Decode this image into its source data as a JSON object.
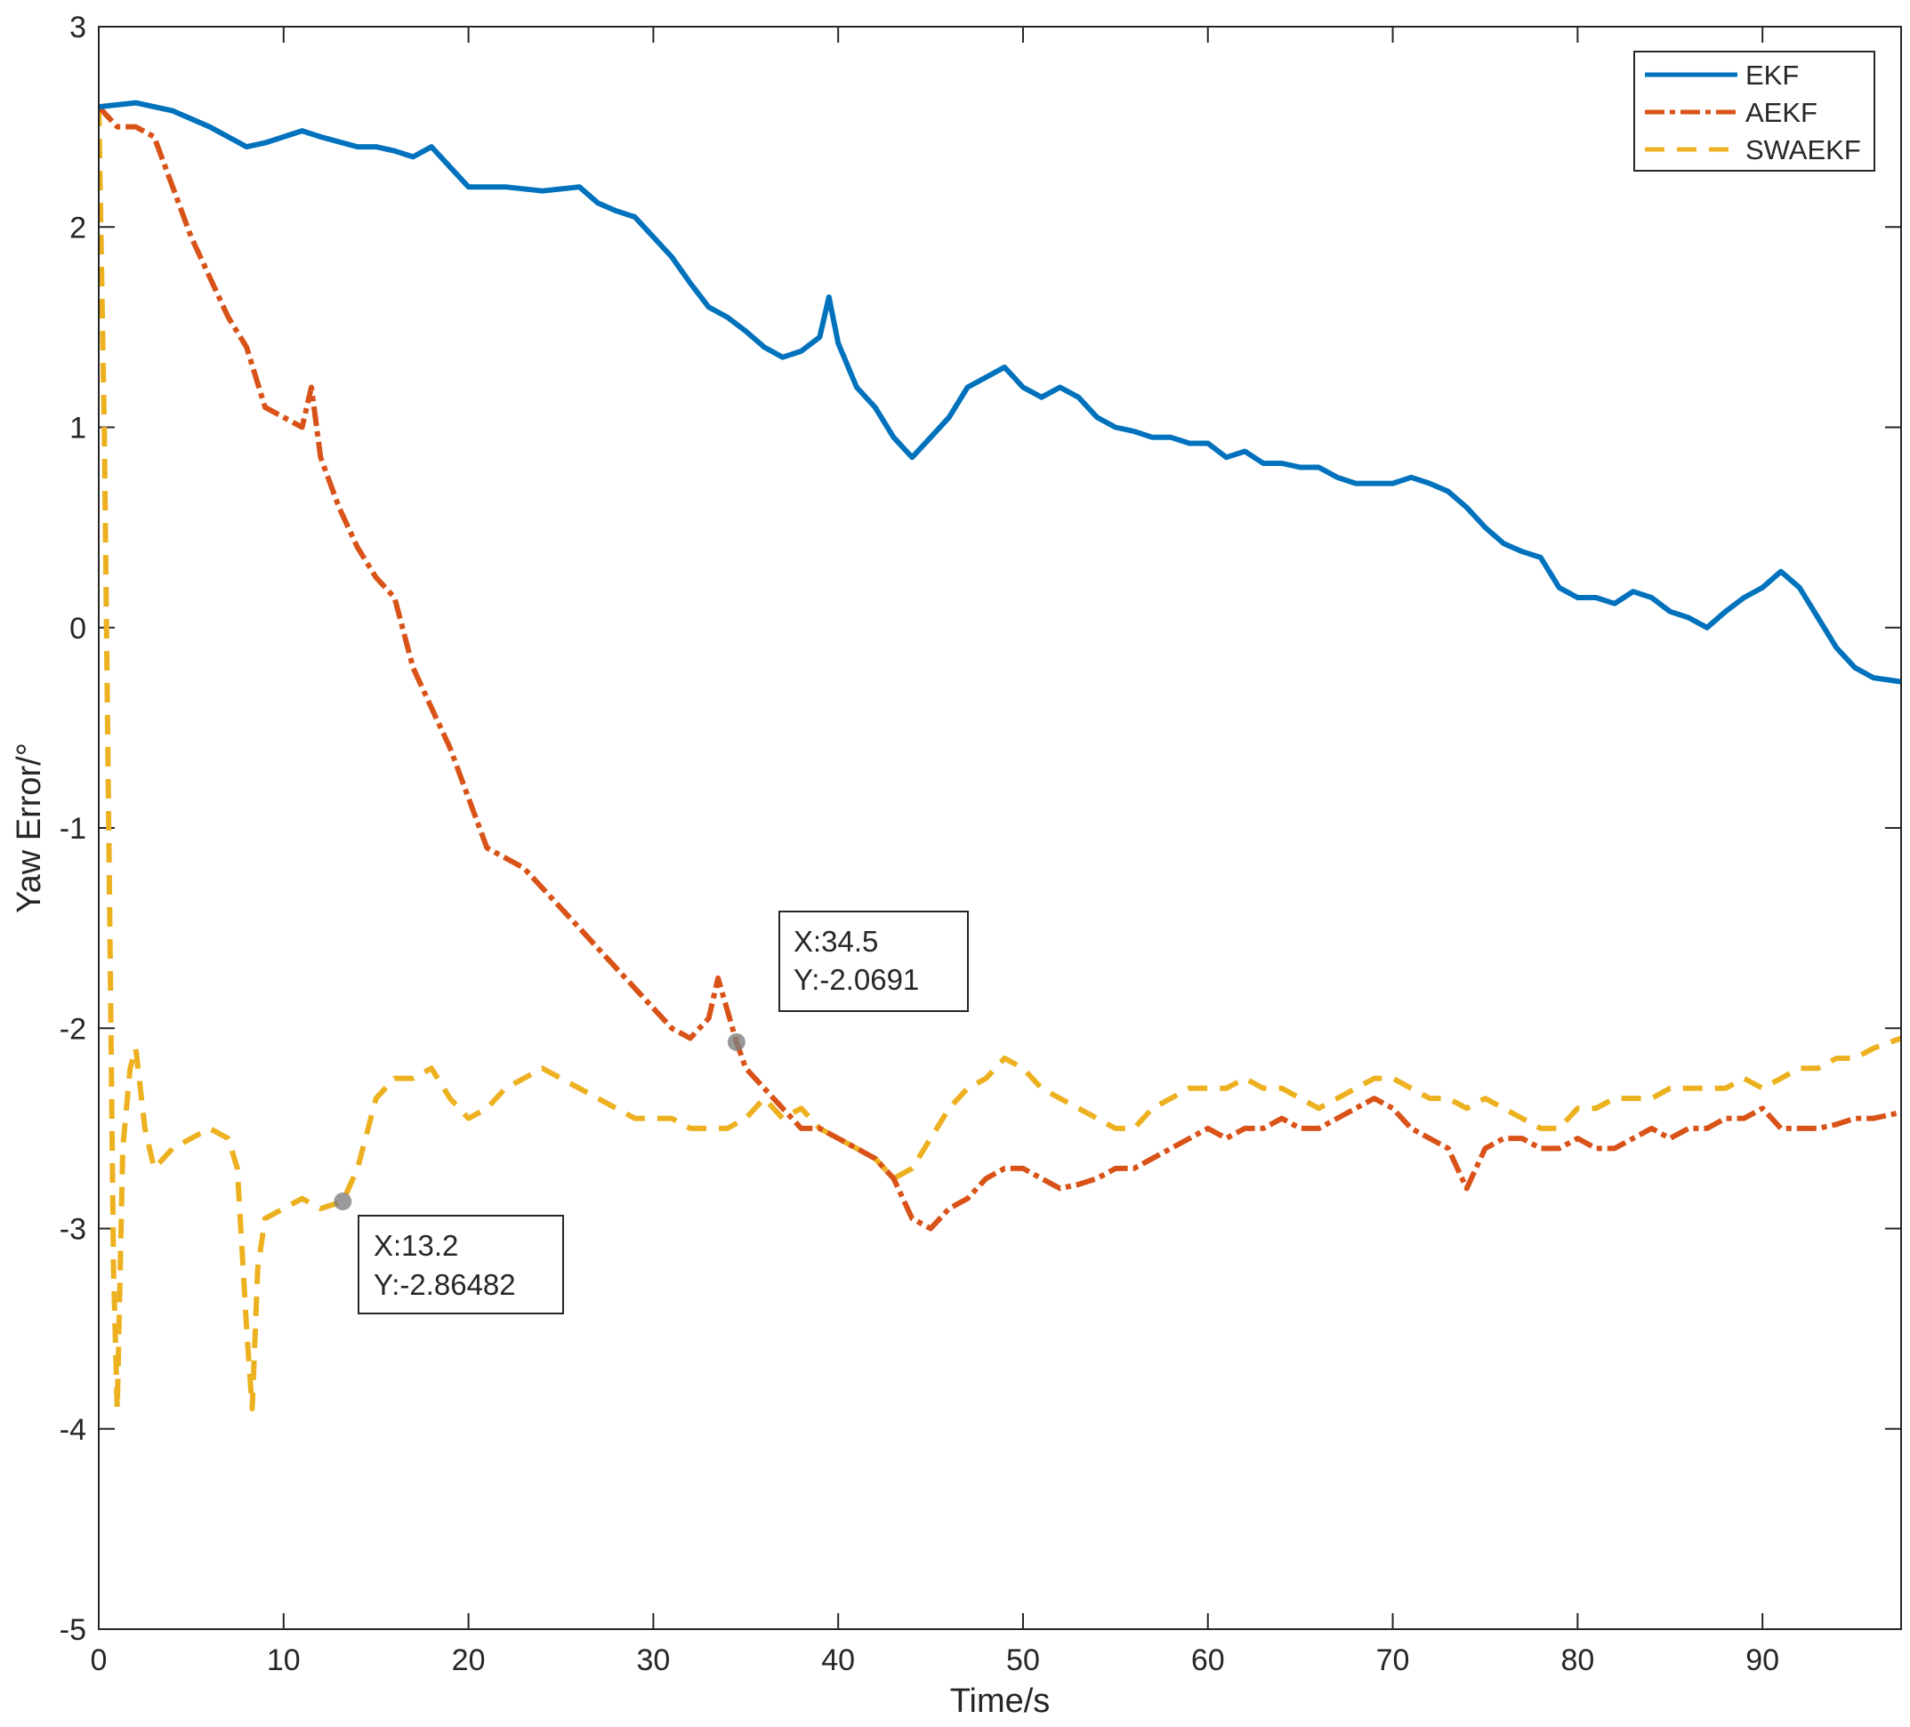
{
  "chart_data": {
    "type": "line",
    "xlabel": "Time/s",
    "ylabel": "Yaw Error/°",
    "xlim": [
      0,
      97.5
    ],
    "ylim": [
      -5,
      3
    ],
    "xticks": [
      0,
      10,
      20,
      30,
      40,
      50,
      60,
      70,
      80,
      90
    ],
    "yticks": [
      3,
      2,
      1,
      0,
      -1,
      -2,
      -3,
      -4,
      -5
    ],
    "legend": {
      "position": "top-right",
      "entries": [
        "EKF",
        "AEKF",
        "SWAEKF"
      ]
    },
    "series": [
      {
        "name": "EKF",
        "color": "#0072BD",
        "style": "solid",
        "points": [
          [
            0,
            2.6
          ],
          [
            2,
            2.62
          ],
          [
            3,
            2.6
          ],
          [
            4,
            2.58
          ],
          [
            6,
            2.5
          ],
          [
            7,
            2.45
          ],
          [
            8,
            2.4
          ],
          [
            9,
            2.42
          ],
          [
            10,
            2.45
          ],
          [
            11,
            2.48
          ],
          [
            12,
            2.45
          ],
          [
            14,
            2.4
          ],
          [
            15,
            2.4
          ],
          [
            16,
            2.38
          ],
          [
            17,
            2.35
          ],
          [
            18,
            2.4
          ],
          [
            19,
            2.3
          ],
          [
            20,
            2.2
          ],
          [
            22,
            2.2
          ],
          [
            24,
            2.18
          ],
          [
            26,
            2.2
          ],
          [
            27,
            2.12
          ],
          [
            28,
            2.08
          ],
          [
            29,
            2.05
          ],
          [
            30,
            1.95
          ],
          [
            31,
            1.85
          ],
          [
            32,
            1.72
          ],
          [
            33,
            1.6
          ],
          [
            34,
            1.55
          ],
          [
            35,
            1.48
          ],
          [
            36,
            1.4
          ],
          [
            37,
            1.35
          ],
          [
            38,
            1.38
          ],
          [
            39,
            1.45
          ],
          [
            39.5,
            1.65
          ],
          [
            40,
            1.42
          ],
          [
            41,
            1.2
          ],
          [
            42,
            1.1
          ],
          [
            43,
            0.95
          ],
          [
            44,
            0.85
          ],
          [
            45,
            0.95
          ],
          [
            46,
            1.05
          ],
          [
            47,
            1.2
          ],
          [
            48,
            1.25
          ],
          [
            49,
            1.3
          ],
          [
            50,
            1.2
          ],
          [
            51,
            1.15
          ],
          [
            52,
            1.2
          ],
          [
            53,
            1.15
          ],
          [
            54,
            1.05
          ],
          [
            55,
            1.0
          ],
          [
            56,
            0.98
          ],
          [
            57,
            0.95
          ],
          [
            58,
            0.95
          ],
          [
            59,
            0.92
          ],
          [
            60,
            0.92
          ],
          [
            61,
            0.85
          ],
          [
            62,
            0.88
          ],
          [
            63,
            0.82
          ],
          [
            64,
            0.82
          ],
          [
            65,
            0.8
          ],
          [
            66,
            0.8
          ],
          [
            67,
            0.75
          ],
          [
            68,
            0.72
          ],
          [
            69,
            0.72
          ],
          [
            70,
            0.72
          ],
          [
            71,
            0.75
          ],
          [
            72,
            0.72
          ],
          [
            73,
            0.68
          ],
          [
            74,
            0.6
          ],
          [
            75,
            0.5
          ],
          [
            76,
            0.42
          ],
          [
            77,
            0.38
          ],
          [
            78,
            0.35
          ],
          [
            79,
            0.2
          ],
          [
            80,
            0.15
          ],
          [
            81,
            0.15
          ],
          [
            82,
            0.12
          ],
          [
            83,
            0.18
          ],
          [
            84,
            0.15
          ],
          [
            85,
            0.08
          ],
          [
            86,
            0.05
          ],
          [
            87,
            0.0
          ],
          [
            88,
            0.08
          ],
          [
            89,
            0.15
          ],
          [
            90,
            0.2
          ],
          [
            91,
            0.28
          ],
          [
            92,
            0.2
          ],
          [
            93,
            0.05
          ],
          [
            94,
            -0.1
          ],
          [
            95,
            -0.2
          ],
          [
            96,
            -0.25
          ],
          [
            97.5,
            -0.27
          ]
        ]
      },
      {
        "name": "AEKF",
        "color": "#D95319",
        "style": "dash-dot",
        "points": [
          [
            0,
            2.6
          ],
          [
            1,
            2.5
          ],
          [
            2,
            2.5
          ],
          [
            3,
            2.45
          ],
          [
            4,
            2.2
          ],
          [
            5,
            1.95
          ],
          [
            6,
            1.75
          ],
          [
            7,
            1.55
          ],
          [
            8,
            1.4
          ],
          [
            9,
            1.1
          ],
          [
            10,
            1.05
          ],
          [
            11,
            1.0
          ],
          [
            11.5,
            1.2
          ],
          [
            12,
            0.85
          ],
          [
            13,
            0.6
          ],
          [
            14,
            0.4
          ],
          [
            15,
            0.25
          ],
          [
            16,
            0.15
          ],
          [
            17,
            -0.2
          ],
          [
            18,
            -0.4
          ],
          [
            19,
            -0.6
          ],
          [
            20,
            -0.85
          ],
          [
            21,
            -1.1
          ],
          [
            22,
            -1.15
          ],
          [
            23,
            -1.2
          ],
          [
            24,
            -1.3
          ],
          [
            25,
            -1.4
          ],
          [
            26,
            -1.5
          ],
          [
            27,
            -1.6
          ],
          [
            28,
            -1.7
          ],
          [
            29,
            -1.8
          ],
          [
            30,
            -1.9
          ],
          [
            31,
            -2.0
          ],
          [
            32,
            -2.05
          ],
          [
            33,
            -1.95
          ],
          [
            33.5,
            -1.75
          ],
          [
            34.5,
            -2.0691
          ],
          [
            35,
            -2.2
          ],
          [
            36,
            -2.3
          ],
          [
            37,
            -2.4
          ],
          [
            38,
            -2.5
          ],
          [
            39,
            -2.5
          ],
          [
            40,
            -2.55
          ],
          [
            41,
            -2.6
          ],
          [
            42,
            -2.65
          ],
          [
            43,
            -2.75
          ],
          [
            44,
            -2.95
          ],
          [
            45,
            -3.0
          ],
          [
            46,
            -2.9
          ],
          [
            47,
            -2.85
          ],
          [
            48,
            -2.75
          ],
          [
            49,
            -2.7
          ],
          [
            50,
            -2.7
          ],
          [
            51,
            -2.75
          ],
          [
            52,
            -2.8
          ],
          [
            53,
            -2.78
          ],
          [
            54,
            -2.75
          ],
          [
            55,
            -2.7
          ],
          [
            56,
            -2.7
          ],
          [
            57,
            -2.65
          ],
          [
            58,
            -2.6
          ],
          [
            59,
            -2.55
          ],
          [
            60,
            -2.5
          ],
          [
            61,
            -2.55
          ],
          [
            62,
            -2.5
          ],
          [
            63,
            -2.5
          ],
          [
            64,
            -2.45
          ],
          [
            65,
            -2.5
          ],
          [
            66,
            -2.5
          ],
          [
            67,
            -2.45
          ],
          [
            68,
            -2.4
          ],
          [
            69,
            -2.35
          ],
          [
            70,
            -2.4
          ],
          [
            71,
            -2.5
          ],
          [
            72,
            -2.55
          ],
          [
            73,
            -2.6
          ],
          [
            74,
            -2.8
          ],
          [
            75,
            -2.6
          ],
          [
            76,
            -2.55
          ],
          [
            77,
            -2.55
          ],
          [
            78,
            -2.6
          ],
          [
            79,
            -2.6
          ],
          [
            80,
            -2.55
          ],
          [
            81,
            -2.6
          ],
          [
            82,
            -2.6
          ],
          [
            83,
            -2.55
          ],
          [
            84,
            -2.5
          ],
          [
            85,
            -2.55
          ],
          [
            86,
            -2.5
          ],
          [
            87,
            -2.5
          ],
          [
            88,
            -2.45
          ],
          [
            89,
            -2.45
          ],
          [
            90,
            -2.4
          ],
          [
            91,
            -2.5
          ],
          [
            92,
            -2.5
          ],
          [
            93,
            -2.5
          ],
          [
            94,
            -2.48
          ],
          [
            95,
            -2.45
          ],
          [
            96,
            -2.45
          ],
          [
            97.5,
            -2.42
          ]
        ]
      },
      {
        "name": "SWAEKF",
        "color": "#EDB120",
        "style": "dashed",
        "points": [
          [
            0,
            2.6
          ],
          [
            0.3,
            1.0
          ],
          [
            0.6,
            -1.5
          ],
          [
            0.8,
            -3.2
          ],
          [
            1,
            -3.9
          ],
          [
            1.3,
            -2.6
          ],
          [
            1.7,
            -2.2
          ],
          [
            2,
            -2.1
          ],
          [
            2.5,
            -2.5
          ],
          [
            3,
            -2.7
          ],
          [
            4,
            -2.6
          ],
          [
            5,
            -2.55
          ],
          [
            6,
            -2.5
          ],
          [
            7,
            -2.55
          ],
          [
            7.5,
            -2.7
          ],
          [
            8,
            -3.5
          ],
          [
            8.3,
            -3.9
          ],
          [
            8.6,
            -3.2
          ],
          [
            9,
            -2.95
          ],
          [
            10,
            -2.9
          ],
          [
            11,
            -2.85
          ],
          [
            12,
            -2.9
          ],
          [
            13.2,
            -2.86482
          ],
          [
            14,
            -2.7
          ],
          [
            15,
            -2.35
          ],
          [
            16,
            -2.25
          ],
          [
            17,
            -2.25
          ],
          [
            18,
            -2.2
          ],
          [
            19,
            -2.35
          ],
          [
            20,
            -2.45
          ],
          [
            21,
            -2.4
          ],
          [
            22,
            -2.3
          ],
          [
            23,
            -2.25
          ],
          [
            24,
            -2.2
          ],
          [
            25,
            -2.25
          ],
          [
            26,
            -2.3
          ],
          [
            27,
            -2.35
          ],
          [
            28,
            -2.4
          ],
          [
            29,
            -2.45
          ],
          [
            30,
            -2.45
          ],
          [
            31,
            -2.45
          ],
          [
            32,
            -2.5
          ],
          [
            33,
            -2.5
          ],
          [
            34,
            -2.5
          ],
          [
            35,
            -2.45
          ],
          [
            36,
            -2.35
          ],
          [
            37,
            -2.45
          ],
          [
            38,
            -2.4
          ],
          [
            39,
            -2.5
          ],
          [
            40,
            -2.55
          ],
          [
            41,
            -2.6
          ],
          [
            42,
            -2.65
          ],
          [
            43,
            -2.75
          ],
          [
            44,
            -2.7
          ],
          [
            45,
            -2.55
          ],
          [
            46,
            -2.4
          ],
          [
            47,
            -2.3
          ],
          [
            48,
            -2.25
          ],
          [
            49,
            -2.15
          ],
          [
            50,
            -2.2
          ],
          [
            51,
            -2.3
          ],
          [
            52,
            -2.35
          ],
          [
            53,
            -2.4
          ],
          [
            54,
            -2.45
          ],
          [
            55,
            -2.5
          ],
          [
            56,
            -2.5
          ],
          [
            57,
            -2.4
          ],
          [
            58,
            -2.35
          ],
          [
            59,
            -2.3
          ],
          [
            60,
            -2.3
          ],
          [
            61,
            -2.3
          ],
          [
            62,
            -2.25
          ],
          [
            63,
            -2.3
          ],
          [
            64,
            -2.3
          ],
          [
            65,
            -2.35
          ],
          [
            66,
            -2.4
          ],
          [
            67,
            -2.35
          ],
          [
            68,
            -2.3
          ],
          [
            69,
            -2.25
          ],
          [
            70,
            -2.25
          ],
          [
            71,
            -2.3
          ],
          [
            72,
            -2.35
          ],
          [
            73,
            -2.35
          ],
          [
            74,
            -2.4
          ],
          [
            75,
            -2.35
          ],
          [
            76,
            -2.4
          ],
          [
            77,
            -2.45
          ],
          [
            78,
            -2.5
          ],
          [
            79,
            -2.5
          ],
          [
            80,
            -2.4
          ],
          [
            81,
            -2.4
          ],
          [
            82,
            -2.35
          ],
          [
            83,
            -2.35
          ],
          [
            84,
            -2.35
          ],
          [
            85,
            -2.3
          ],
          [
            86,
            -2.3
          ],
          [
            87,
            -2.3
          ],
          [
            88,
            -2.3
          ],
          [
            89,
            -2.25
          ],
          [
            90,
            -2.3
          ],
          [
            91,
            -2.25
          ],
          [
            92,
            -2.2
          ],
          [
            93,
            -2.2
          ],
          [
            94,
            -2.15
          ],
          [
            95,
            -2.15
          ],
          [
            96,
            -2.1
          ],
          [
            97.5,
            -2.05
          ]
        ]
      }
    ],
    "annotations": [
      {
        "label_x": "X:13.2",
        "label_y": "Y:-2.86482",
        "x": 13.2,
        "y": -2.86482
      },
      {
        "label_x": "X:34.5",
        "label_y": "Y:-2.0691",
        "x": 34.5,
        "y": -2.0691
      }
    ]
  }
}
